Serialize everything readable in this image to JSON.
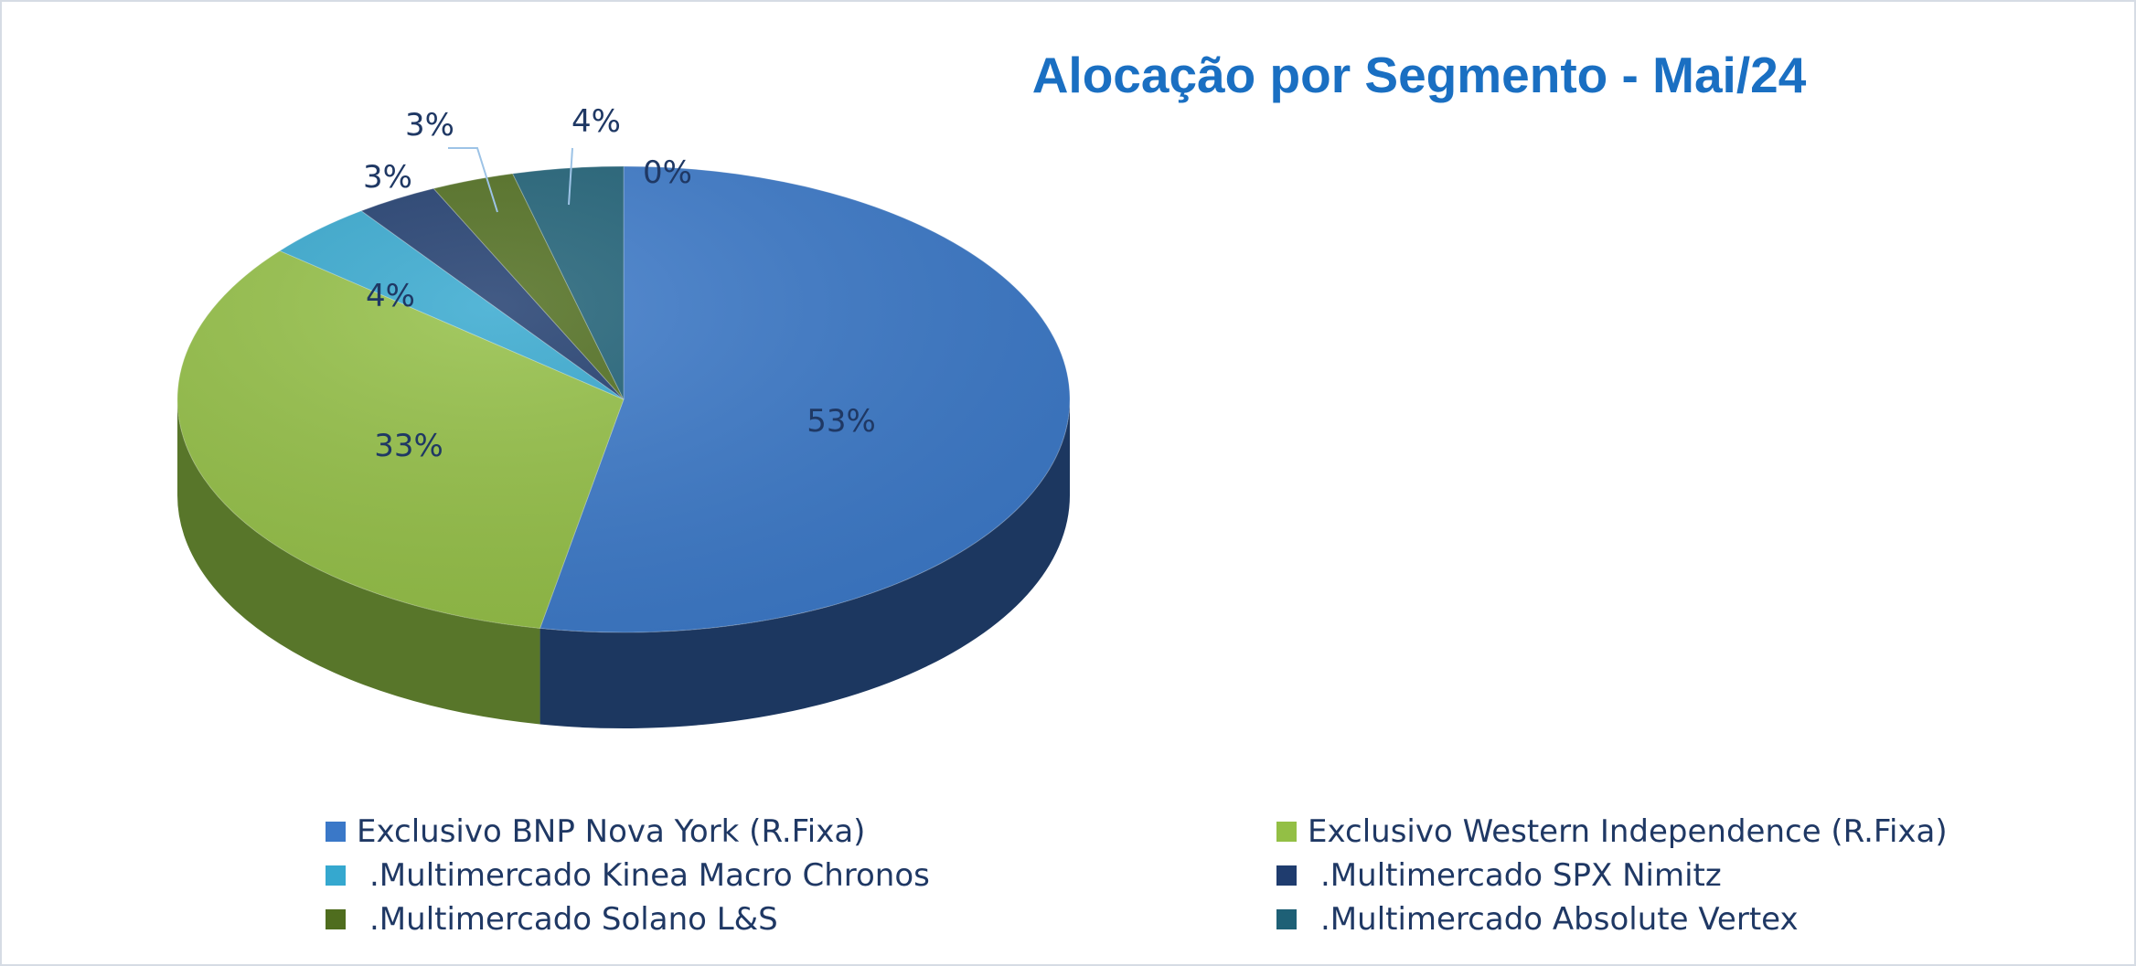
{
  "chart_data": {
    "type": "pie",
    "style": "3d",
    "title": "Alocação por Segmento - Mai/24",
    "legend_position": "bottom",
    "slices": [
      {
        "label": "Exclusivo BNP Nova York (R.Fixa)",
        "value": 53,
        "display": "53%",
        "color": "#3a78c8",
        "side_color": "#1c3760"
      },
      {
        "label": "Exclusivo Western Independence (R.Fixa)",
        "value": 33,
        "display": "33%",
        "color": "#93bf45",
        "side_color": "#58762a"
      },
      {
        "label": ".Multimercado Kinea Macro Chronos",
        "value": 4,
        "display": "4%",
        "color": "#35a8cf",
        "side_color": "#1d6c86"
      },
      {
        "label": ".Multimercado SPX Nimitz",
        "value": 3,
        "display": "3%",
        "color": "#1f3c6e",
        "side_color": "#142744"
      },
      {
        "label": ".Multimercado Solano L&S",
        "value": 3,
        "display": "3%",
        "color": "#4f6d1e",
        "side_color": "#334812"
      },
      {
        "label": ".Multimercado Absolute Vertex",
        "value": 4,
        "display": "4%",
        "color": "#1e6076",
        "side_color": "#123c4a"
      },
      {
        "label": "",
        "value": 0,
        "display": "0%",
        "color": "#5b9bd5",
        "side_color": "#2e5e8c"
      }
    ]
  }
}
